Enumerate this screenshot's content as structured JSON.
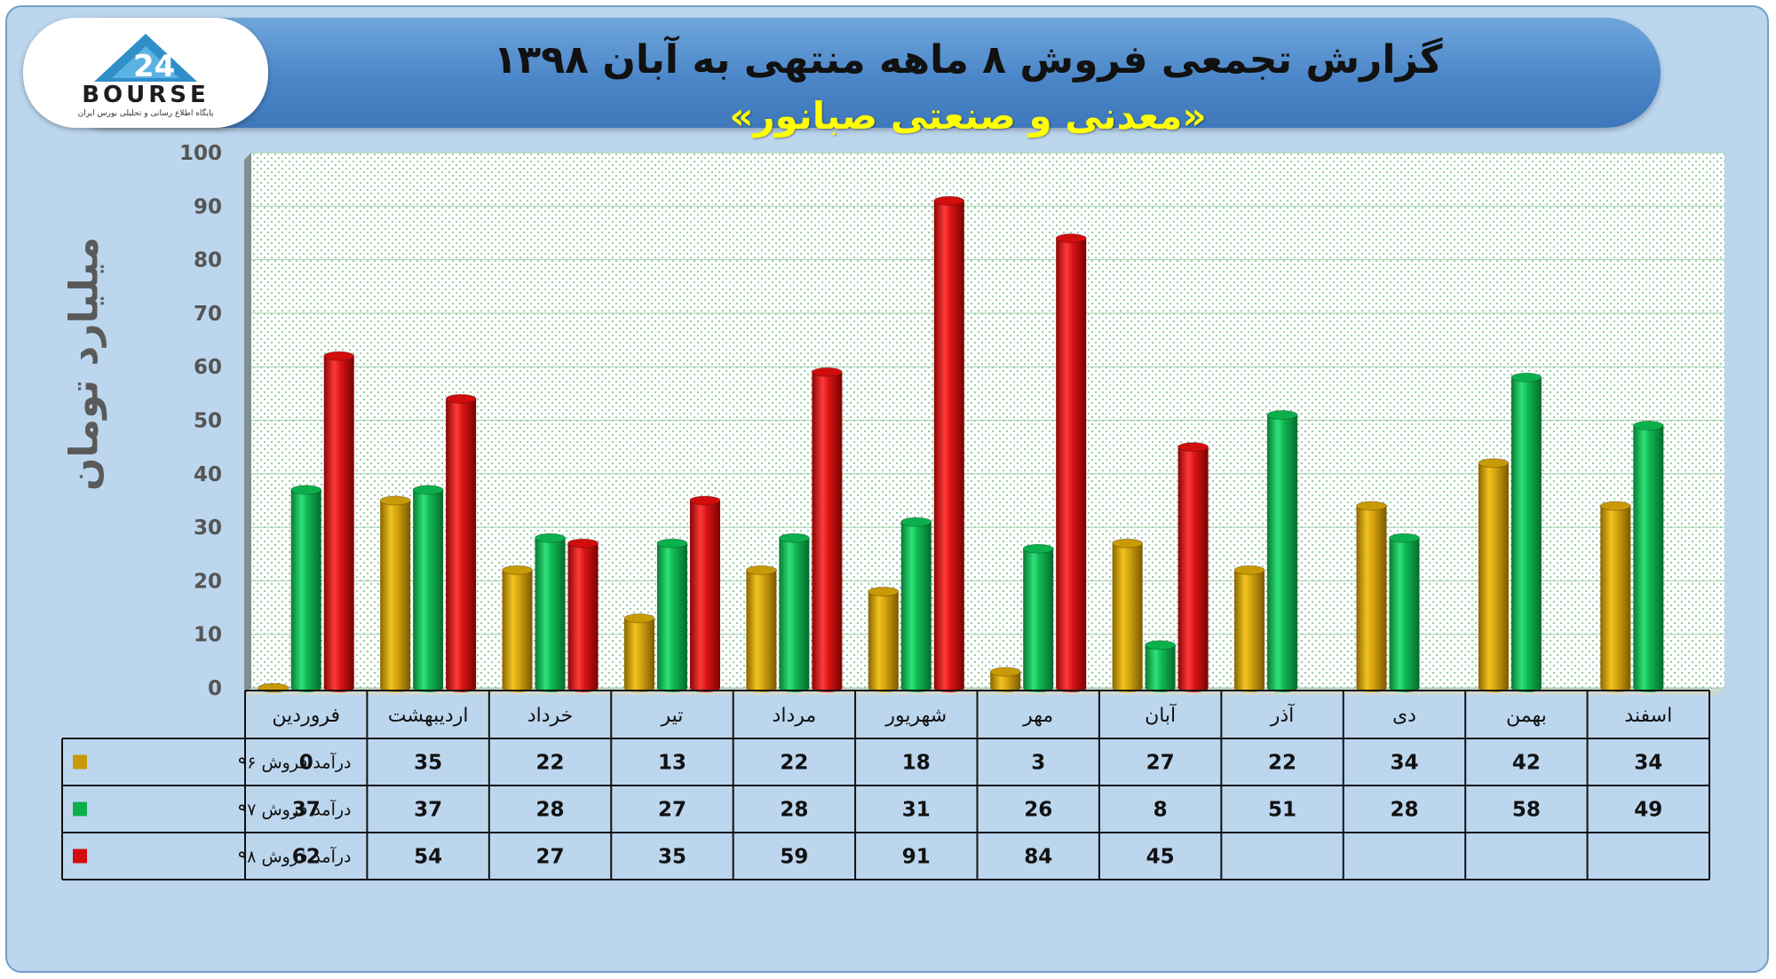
{
  "header": {
    "title": "گزارش تجمعی فروش ۸ ماهه منتهی به آبان ۱۳۹۸",
    "subtitle": "«معدنی و صنعتی صبانور»"
  },
  "logo": {
    "text": "BOURSE",
    "caption": "پایگاه اطلاع رسانی و تحلیلی بورس ایران"
  },
  "colors": {
    "s96": "#c99a07",
    "s97": "#0bb04c",
    "s98": "#d20d0d"
  },
  "chart_data": {
    "type": "bar",
    "ylabel": "میلیارد تومان",
    "ylim": [
      0,
      100
    ],
    "yticks": [
      "0",
      "10",
      "20",
      "30",
      "40",
      "50",
      "60",
      "70",
      "80",
      "90",
      "100"
    ],
    "categories": [
      "فروردین",
      "اردیبهشت",
      "خرداد",
      "تیر",
      "مرداد",
      "شهریور",
      "مهر",
      "آبان",
      "آذر",
      "دی",
      "بهمن",
      "اسفند"
    ],
    "grid": true,
    "legend": "table-left",
    "series": [
      {
        "name": "درآمد فروش ۹۶",
        "values": [
          0,
          35,
          22,
          13,
          22,
          18,
          3,
          27,
          22,
          34,
          42,
          34
        ]
      },
      {
        "name": "درآمد فروش ۹۷",
        "values": [
          37,
          37,
          28,
          27,
          28,
          31,
          26,
          8,
          51,
          28,
          58,
          49
        ]
      },
      {
        "name": "درآمد فروش ۹۸",
        "values": [
          62,
          54,
          27,
          35,
          59,
          91,
          84,
          45,
          null,
          null,
          null,
          null
        ]
      }
    ]
  }
}
